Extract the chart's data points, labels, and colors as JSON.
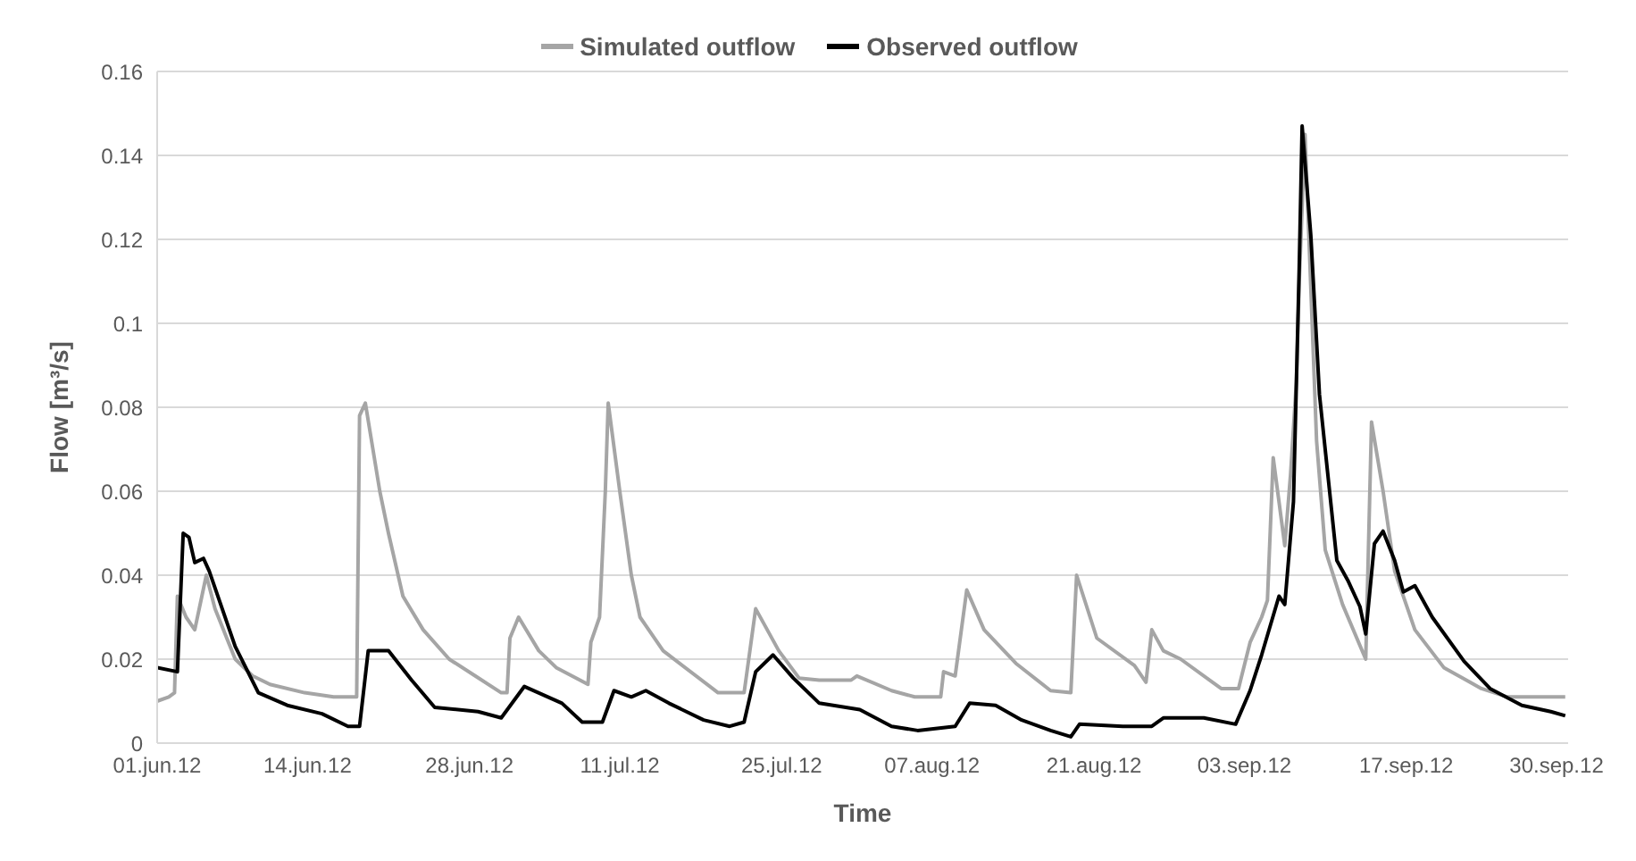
{
  "chart_data": {
    "type": "line",
    "xlabel": "Time",
    "ylabel": "Flow [m³/s]",
    "legend": "top",
    "grid": "y",
    "marker": "none",
    "line_style": "solid",
    "xlim": [
      "--06-01",
      "--10-01"
    ],
    "xticks": [
      {
        "value": "--06-01",
        "label": "01.jun.12"
      },
      {
        "value": "--06-14",
        "label": "14.jun.12"
      },
      {
        "value": "--06-28",
        "label": "28.jun.12"
      },
      {
        "value": "--07-11",
        "label": "11.jul.12"
      },
      {
        "value": "--07-25",
        "label": "25.jul.12"
      },
      {
        "value": "--08-07",
        "label": "07.aug.12"
      },
      {
        "value": "--08-21",
        "label": "21.aug.12"
      },
      {
        "value": "--09-03",
        "label": "03.sep.12"
      },
      {
        "value": "--09-17",
        "label": "17.sep.12"
      },
      {
        "value": "--09-30",
        "label": "30.sep.12"
      }
    ],
    "ylim": [
      0,
      0.16
    ],
    "yticks": [
      0,
      0.02,
      0.04,
      0.06,
      0.08,
      0.1,
      0.12,
      0.14,
      0.16
    ],
    "series": [
      {
        "name": "Simulated outflow",
        "color": "#a5a5a5",
        "x": [
          "--06-01T00:00",
          "--06-02T00:00",
          "--06-02T12:00",
          "--06-02T18:00",
          "--06-03T12:00",
          "--06-04T06:00",
          "--06-05T06:00",
          "--06-06T00:00",
          "--06-07T18:00",
          "--06-09T06:00",
          "--06-10T18:00",
          "--06-13T18:00",
          "--06-16T06:00",
          "--06-18T06:00",
          "--06-18T12:00",
          "--06-19T00:00",
          "--06-20T06:00",
          "--06-21T00:00",
          "--06-22T06:00",
          "--06-24T00:00",
          "--06-26T06:00",
          "--06-28T12:00",
          "--06-30T18:00",
          "--07-01T06:00",
          "--07-01T12:00",
          "--07-02T06:00",
          "--07-04T00:00",
          "--07-05T12:00",
          "--07-08T06:00",
          "--07-08T12:00",
          "--07-09T06:00",
          "--07-09T18:00",
          "--07-10T00:00",
          "--07-11T00:00",
          "--07-12T00:00",
          "--07-12T18:00",
          "--07-13T06:00",
          "--07-14T18:00",
          "--07-19T12:00",
          "--07-21T18:00",
          "--07-22T18:00",
          "--07-24T18:00",
          "--07-26T12:00",
          "--07-28T06:00",
          "--07-31T00:00",
          "--07-31T12:00",
          "--08-03T12:00",
          "--08-05T12:00",
          "--08-07T18:00",
          "--08-08T00:00",
          "--08-09T00:00",
          "--08-10T00:00",
          "--08-11T12:00",
          "--08-14T06:00",
          "--08-17T06:00",
          "--08-19T00:00",
          "--08-19T12:00",
          "--08-21T06:00",
          "--08-24T12:00",
          "--08-25T12:00",
          "--08-26T00:00",
          "--08-27T00:00",
          "--08-28T12:00",
          "--09-01T00:00",
          "--09-02T12:00",
          "--09-03T12:00",
          "--09-04T12:00",
          "--09-05T00:00",
          "--09-05T12:00",
          "--09-06T12:00",
          "--09-07T00:00",
          "--09-07T12:00",
          "--09-07T18:00",
          "--09-08T06:00",
          "--09-09T06:00",
          "--09-10T00:00",
          "--09-11T12:00",
          "--09-13T12:00",
          "--09-14T00:00",
          "--09-15T00:00",
          "--09-16T00:00",
          "--09-17T18:00",
          "--09-20T06:00",
          "--09-23T12:00",
          "--09-25T18:00",
          "--09-30T18:00"
        ],
        "values": [
          0.01,
          0.011,
          0.012,
          0.035,
          0.03,
          0.027,
          0.04,
          0.032,
          0.02,
          0.016,
          0.014,
          0.012,
          0.011,
          0.011,
          0.078,
          0.081,
          0.06,
          0.05,
          0.035,
          0.027,
          0.02,
          0.016,
          0.012,
          0.012,
          0.025,
          0.03,
          0.022,
          0.018,
          0.014,
          0.024,
          0.03,
          0.06,
          0.081,
          0.06,
          0.04,
          0.03,
          0.028,
          0.022,
          0.012,
          0.012,
          0.032,
          0.022,
          0.0155,
          0.015,
          0.015,
          0.016,
          0.0125,
          0.011,
          0.011,
          0.017,
          0.016,
          0.0365,
          0.027,
          0.019,
          0.0125,
          0.012,
          0.04,
          0.025,
          0.0185,
          0.0145,
          0.027,
          0.022,
          0.02,
          0.013,
          0.013,
          0.024,
          0.03,
          0.034,
          0.068,
          0.047,
          0.064,
          0.086,
          0.11,
          0.145,
          0.072,
          0.046,
          0.033,
          0.02,
          0.0765,
          0.06,
          0.041,
          0.027,
          0.018,
          0.013,
          0.011,
          0.011
        ]
      },
      {
        "name": "Observed outflow",
        "color": "#000000",
        "x": [
          "--06-01T00:00",
          "--06-02T18:00",
          "--06-03T06:00",
          "--06-03T18:00",
          "--06-04T06:00",
          "--06-05T00:00",
          "--06-05T12:00",
          "--06-07T18:00",
          "--06-09T18:00",
          "--06-12T06:00",
          "--06-15T06:00",
          "--06-17T12:00",
          "--06-18T12:00",
          "--06-19T06:00",
          "--06-21T00:00",
          "--06-23T00:00",
          "--06-25T00:00",
          "--06-28T18:00",
          "--06-30T18:00",
          "--07-02T18:00",
          "--07-06T00:00",
          "--07-07T18:00",
          "--07-09T12:00",
          "--07-10T12:00",
          "--07-12T00:00",
          "--07-13T06:00",
          "--07-15T06:00",
          "--07-18T06:00",
          "--07-20T12:00",
          "--07-21T18:00",
          "--07-22T18:00",
          "--07-24T06:00",
          "--07-26T00:00",
          "--07-28T06:00",
          "--07-31T18:00",
          "--08-03T12:00",
          "--08-05T18:00",
          "--08-09T00:00",
          "--08-10T06:00",
          "--08-12T12:00",
          "--08-14T18:00",
          "--08-17T06:00",
          "--08-19T00:00",
          "--08-19T18:00",
          "--08-23T12:00",
          "--08-26T00:00",
          "--08-27T00:00",
          "--08-30T12:00",
          "--09-02T06:00",
          "--09-03T12:00",
          "--09-04T12:00",
          "--09-06T00:00",
          "--09-06T12:00",
          "--09-07T06:00",
          "--09-07T18:00",
          "--09-08T00:00",
          "--09-08T18:00",
          "--09-09T12:00",
          "--09-11T00:00",
          "--09-12T00:00",
          "--09-13T00:00",
          "--09-13T12:00",
          "--09-14T06:00",
          "--09-15T00:00",
          "--09-16T00:00",
          "--09-16T18:00",
          "--09-17T18:00",
          "--09-19T06:00",
          "--09-22T00:00",
          "--09-24T06:00",
          "--09-27T00:00",
          "--09-29T12:00",
          "--09-30T18:00"
        ],
        "values": [
          0.018,
          0.017,
          0.05,
          0.049,
          0.043,
          0.044,
          0.041,
          0.023,
          0.012,
          0.009,
          0.007,
          0.004,
          0.004,
          0.022,
          0.022,
          0.015,
          0.0085,
          0.0075,
          0.006,
          0.0135,
          0.0095,
          0.005,
          0.005,
          0.0125,
          0.011,
          0.0125,
          0.0095,
          0.0055,
          0.004,
          0.005,
          0.017,
          0.021,
          0.0155,
          0.0095,
          0.008,
          0.004,
          0.003,
          0.004,
          0.0095,
          0.009,
          0.0055,
          0.003,
          0.0015,
          0.0045,
          0.004,
          0.004,
          0.006,
          0.006,
          0.0045,
          0.0125,
          0.021,
          0.035,
          0.033,
          0.0575,
          0.1135,
          0.147,
          0.121,
          0.083,
          0.0435,
          0.0385,
          0.0325,
          0.026,
          0.0475,
          0.0505,
          0.0435,
          0.036,
          0.0375,
          0.03,
          0.0195,
          0.013,
          0.009,
          0.0075,
          0.0065
        ]
      }
    ]
  }
}
